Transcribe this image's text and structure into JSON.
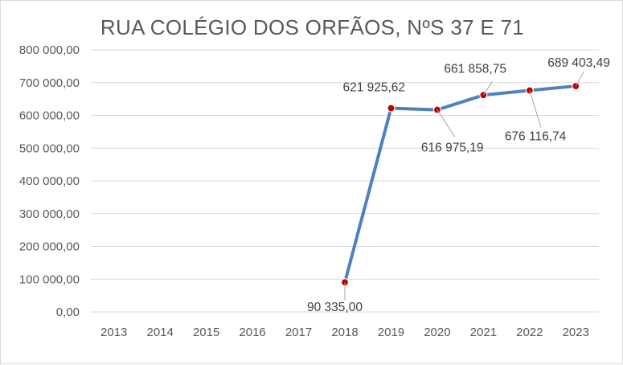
{
  "chart_data": {
    "type": "line",
    "title": "RUA COLÉGIO DOS ORFÃOS, NºS 37 E 71",
    "categories": [
      "2013",
      "2014",
      "2015",
      "2016",
      "2017",
      "2018",
      "2019",
      "2020",
      "2021",
      "2022",
      "2023"
    ],
    "series": [
      {
        "values": [
          null,
          null,
          null,
          null,
          null,
          90335.0,
          621925.62,
          616975.19,
          661858.75,
          676116.74,
          689403.49
        ],
        "data_labels": [
          "",
          "",
          "",
          "",
          "",
          "90 335,00",
          "621 925,62",
          "616 975,19",
          "661 858,75",
          "676 116,74",
          "689 403,49"
        ]
      }
    ],
    "y_ticks": [
      0,
      100000,
      200000,
      300000,
      400000,
      500000,
      600000,
      700000,
      800000
    ],
    "y_tick_labels": [
      "0,00",
      "100 000,00",
      "200 000,00",
      "300 000,00",
      "400 000,00",
      "500 000,00",
      "600 000,00",
      "700 000,00",
      "800 000,00"
    ],
    "ylim": [
      0,
      800000
    ],
    "grid": true,
    "legend": "none",
    "colors": {
      "line": "#4f81bd",
      "marker": "#c00000",
      "grid": "#d9d9d9",
      "text": "#595959",
      "leader": "#a6a6a6"
    }
  }
}
